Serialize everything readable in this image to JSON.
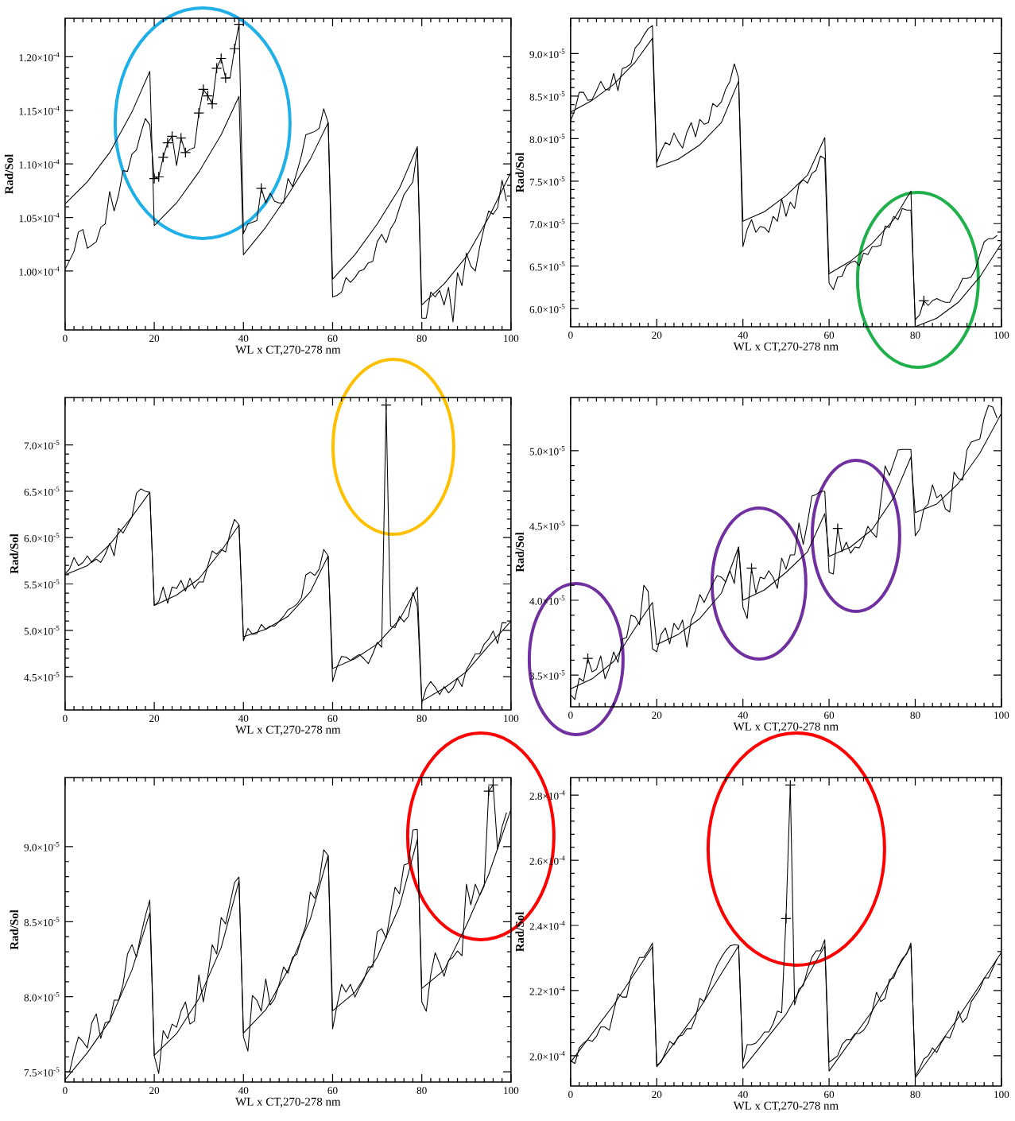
{
  "chart_data": [
    {
      "type": "line",
      "xlabel": "WL x CT,270-278 nm",
      "ylabel": "Rad/Sol",
      "xlim": [
        0,
        100
      ],
      "ylim": [
        9.45e-05,
        0.0001236
      ],
      "xticks": [
        0,
        20,
        40,
        60,
        80,
        100
      ],
      "yticks": [
        {
          "value": 0.0001,
          "label": "1.00×10$^{-4}$"
        },
        {
          "value": 0.000105,
          "label": "1.05×10$^{-4}$"
        },
        {
          "value": 0.00011,
          "label": "1.10×10$^{-4}$"
        },
        {
          "value": 0.000115,
          "label": "1.15×10$^{-4}$"
        },
        {
          "value": 0.00012,
          "label": "1.20×10$^{-4}$"
        }
      ],
      "series": [
        {
          "color": "#000000",
          "x": [
            0,
            2,
            3,
            4,
            5,
            7,
            8,
            9,
            10,
            11,
            12,
            13,
            14,
            15,
            16,
            17,
            18,
            19,
            20,
            21,
            22,
            23,
            24,
            25,
            26,
            27,
            28,
            29,
            30,
            31,
            32,
            33,
            34,
            35,
            36,
            37,
            38,
            39,
            40,
            41,
            42,
            43,
            44,
            45,
            46,
            47,
            48,
            49,
            50,
            51,
            52,
            53,
            54,
            55,
            56,
            57,
            58,
            59,
            60,
            61,
            62,
            63,
            64,
            65,
            66,
            67,
            68,
            69,
            70,
            71,
            72,
            73,
            74,
            75,
            76,
            77,
            78,
            79,
            80,
            81,
            82,
            83,
            84,
            85,
            86,
            87,
            88,
            89,
            90,
            91,
            92,
            93,
            94,
            95,
            96,
            97,
            98,
            99
          ],
          "values": [
            0.00010015,
            0.00010182,
            0.00010364,
            0.00010388,
            0.00010212,
            0.00010273,
            0.00010409,
            0.0001044,
            0.00010742,
            0.00010561,
            0.00010712,
            0.00010939,
            0.0001093,
            0.00011091,
            0.0001113,
            0.00011288,
            0.00011424,
            0.00011364,
            0.00010864,
            0.00010879,
            0.00011061,
            0.00011197,
            0.00011258,
            0.00010985,
            0.00011242,
            0.00011106,
            0.00011136,
            0.00011152,
            0.00011476,
            0.00011697,
            0.00011636,
            0.00011561,
            0.00011894,
            0.00011985,
            0.00011803,
            0.00011803,
            0.00012076,
            0.00012303,
            0.0001035,
            0.0001044,
            0.00010455,
            0.0001047,
            0.00010773,
            0.00010636,
            0.00010727,
            0.0001065,
            0.00010636,
            0.00010636,
            0.00010864,
            0.00010788,
            0.00010924,
            0.00011076,
            0.00011273,
            0.00011288,
            0.00011303,
            0.00011333,
            0.00011515,
            0.00011385,
            9.758e-05,
            9.773e-05,
            9.803e-05,
            9.939e-05,
            9.894e-05,
            9.939e-05,
            0.0001,
            0.00010015,
            0.00010076,
            0.00010091,
            0.00010273,
            0.00010342,
            0.00010264,
            0.00010394,
            0.00010461,
            0.00010591,
            0.00010712,
            0.00010773,
            0.00010833,
            0.00011136,
            9.56e-05,
            9.56e-05,
            9.803e-05,
            9.758e-05,
            9.818e-05,
            9.682e-05,
            9.848e-05,
            9.524e-05,
            9.985e-05,
            9.864e-05,
            0.00010167,
            0.00010045,
            0.0001,
            0.00010227,
            0.00010409,
            0.00010561,
            0.0001053,
            0.00010591,
            0.00010848,
            0.00010652
          ]
        },
        {
          "color": "#000000",
          "x": [
            0,
            5,
            10,
            15,
            19,
            20,
            25,
            30,
            35,
            39,
            40,
            45,
            50,
            55,
            59,
            60,
            65,
            70,
            75,
            79,
            80,
            85,
            90,
            95,
            100
          ],
          "values": [
            0.00010627,
            0.00010833,
            0.00011106,
            0.00011485,
            0.00011864,
            0.00010424,
            0.00010636,
            0.00010924,
            0.00011273,
            0.0001163,
            0.00010152,
            0.00010409,
            0.00010712,
            0.00011045,
            0.00011385,
            9.924e-05,
            0.00010152,
            0.00010439,
            0.00010773,
            0.00011161,
            9.682e-05,
            9.879e-05,
            0.00010136,
            0.000105,
            0.00010924
          ]
        },
        {
          "type": "scatter",
          "marker": "cross",
          "color": "#000000",
          "x": [
            20,
            21,
            22,
            23,
            24,
            26,
            27,
            30,
            31,
            32,
            33,
            34,
            35,
            36,
            38,
            39,
            44
          ],
          "values": [
            0.00010864,
            0.00010879,
            0.00011061,
            0.00011197,
            0.00011258,
            0.00011242,
            0.00011106,
            0.00011476,
            0.00011697,
            0.00011636,
            0.00011561,
            0.00011894,
            0.00011985,
            0.00011803,
            0.00012076,
            0.00012303,
            0.00010773
          ]
        }
      ]
    },
    {
      "type": "line",
      "xlabel": "WL x CT,270-278 nm",
      "ylabel": "Rad/Sol",
      "xlim": [
        0,
        100
      ],
      "ylim": [
        5.787e-05,
        9.415e-05
      ],
      "xticks": [
        0,
        20,
        40,
        60,
        80,
        100
      ],
      "yticks": [
        {
          "value": 6e-05,
          "label": "6.0×10$^{-5}$"
        },
        {
          "value": 6.5e-05,
          "label": "6.5×10$^{-5}$"
        },
        {
          "value": 7e-05,
          "label": "7.0×10$^{-5}$"
        },
        {
          "value": 7.5e-05,
          "label": "7.5×10$^{-5}$"
        },
        {
          "value": 8e-05,
          "label": "8.0×10$^{-5}$"
        },
        {
          "value": 8.5e-05,
          "label": "8.5×10$^{-5}$"
        },
        {
          "value": 9e-05,
          "label": "9.0×10$^{-5}$"
        }
      ],
      "series": [
        {
          "color": "#000000",
          "x": [
            0,
            1,
            2,
            3,
            4,
            5,
            6,
            7,
            8,
            9,
            10,
            11,
            12,
            13,
            14,
            15,
            16,
            17,
            18,
            19,
            20,
            21,
            22,
            23,
            24,
            25,
            26,
            27,
            28,
            29,
            30,
            31,
            32,
            33,
            34,
            35,
            36,
            37,
            38,
            39,
            40,
            41,
            42,
            43,
            44,
            45,
            46,
            47,
            48,
            49,
            50,
            51,
            52,
            53,
            54,
            55,
            56,
            57,
            58,
            59,
            60,
            61,
            62,
            63,
            64,
            65,
            66,
            67,
            68,
            69,
            70,
            71,
            72,
            73,
            74,
            75,
            76,
            77,
            78,
            79,
            80,
            81,
            82,
            83,
            84,
            85,
            86,
            87,
            88,
            89,
            90,
            91,
            92,
            93,
            94,
            95,
            96,
            97,
            98,
            99
          ],
          "values": [
            8.207e-05,
            8.338e-05,
            8.544e-05,
            8.544e-05,
            8.45e-05,
            8.46e-05,
            8.562e-05,
            8.675e-05,
            8.581e-05,
            8.57e-05,
            8.768e-05,
            8.562e-05,
            8.824e-05,
            8.843e-05,
            8.88e-05,
            9.067e-05,
            9.123e-05,
            9.217e-05,
            9.292e-05,
            9.329e-05,
            7.72e-05,
            7.851e-05,
            7.953e-05,
            7.926e-05,
            8.065e-05,
            7.964e-05,
            7.889e-05,
            8.076e-05,
            8.188e-05,
            8.02e-05,
            8.226e-05,
            8.169e-05,
            8.188e-05,
            8.413e-05,
            8.375e-05,
            8.431e-05,
            8.581e-05,
            8.675e-05,
            8.88e-05,
            8.712e-05,
            6.729e-05,
            6.934e-05,
            7.047e-05,
            6.897e-05,
            6.965e-05,
            6.954e-05,
            6.897e-05,
            7.085e-05,
            7.028e-05,
            7.29e-05,
            7.085e-05,
            7.253e-05,
            7.178e-05,
            7.459e-05,
            7.515e-05,
            7.477e-05,
            7.59e-05,
            7.627e-05,
            7.795e-05,
            7.765e-05,
            6.299e-05,
            6.224e-05,
            6.374e-05,
            6.381e-05,
            6.505e-05,
            6.542e-05,
            6.561e-05,
            6.505e-05,
            6.654e-05,
            6.636e-05,
            6.729e-05,
            6.729e-05,
            6.748e-05,
            6.972e-05,
            6.954e-05,
            7.085e-05,
            7.047e-05,
            7.178e-05,
            7.159e-05,
            7.159e-05,
            5.869e-05,
            5.925e-05,
            6.093e-05,
            6.037e-05,
            6.093e-05,
            6.119e-05,
            6.093e-05,
            6.074e-05,
            6.074e-05,
            6.168e-05,
            6.243e-05,
            6.355e-05,
            6.355e-05,
            6.374e-05,
            6.467e-05,
            6.636e-05,
            6.785e-05,
            6.823e-05,
            6.823e-05,
            6.86e-05
          ]
        },
        {
          "color": "#000000",
          "x": [
            0,
            5,
            10,
            15,
            19,
            20,
            25,
            30,
            35,
            39,
            40,
            45,
            50,
            55,
            59,
            60,
            65,
            70,
            75,
            79,
            80,
            85,
            90,
            95,
            100
          ],
          "values": [
            8.312e-05,
            8.45e-05,
            8.637e-05,
            8.9e-05,
            9.18e-05,
            7.664e-05,
            7.758e-05,
            7.926e-05,
            8.188e-05,
            8.675e-05,
            7.028e-05,
            7.14e-05,
            7.328e-05,
            7.571e-05,
            8.012e-05,
            6.411e-05,
            6.56e-05,
            6.767e-05,
            7.047e-05,
            7.384e-05,
            5.787e-05,
            5.887e-05,
            6.074e-05,
            6.374e-05,
            6.767e-05
          ]
        },
        {
          "type": "scatter",
          "marker": "cross",
          "color": "#000000",
          "x": [
            82
          ],
          "values": [
            6.093e-05
          ]
        }
      ]
    },
    {
      "type": "line",
      "xlabel": "WL x CT,270-278 nm",
      "ylabel": "Rad/Sol",
      "xlim": [
        0,
        100
      ],
      "ylim": [
        4.141e-05,
        7.511e-05
      ],
      "xticks": [
        0,
        20,
        40,
        60,
        80,
        100
      ],
      "yticks": [
        {
          "value": 4.5e-05,
          "label": "4.5×10$^{-5}$"
        },
        {
          "value": 5e-05,
          "label": "5.0×10$^{-5}$"
        },
        {
          "value": 5.5e-05,
          "label": "5.5×10$^{-5}$"
        },
        {
          "value": 6e-05,
          "label": "6.0×10$^{-5}$"
        },
        {
          "value": 6.5e-05,
          "label": "6.5×10$^{-5}$"
        },
        {
          "value": 7e-05,
          "label": "7.0×10$^{-5}$"
        }
      ],
      "series": [
        {
          "color": "#000000",
          "x": [
            0,
            1,
            2,
            3,
            4,
            5,
            6,
            7,
            8,
            9,
            10,
            11,
            12,
            13,
            14,
            15,
            16,
            17,
            18,
            19,
            20,
            21,
            22,
            23,
            24,
            25,
            26,
            27,
            28,
            29,
            30,
            31,
            32,
            33,
            34,
            35,
            36,
            37,
            38,
            39,
            40,
            41,
            42,
            43,
            44,
            45,
            46,
            47,
            48,
            49,
            50,
            51,
            52,
            53,
            54,
            55,
            56,
            57,
            58,
            59,
            60,
            61,
            62,
            63,
            64,
            65,
            66,
            67,
            68,
            69,
            70,
            71,
            72,
            73,
            74,
            75,
            76,
            77,
            78,
            79,
            80,
            81,
            82,
            83,
            84,
            85,
            86,
            87,
            88,
            89,
            90,
            91,
            92,
            93,
            94,
            95,
            96,
            97,
            98,
            99
          ],
          "values": [
            5.609e-05,
            5.662e-05,
            5.785e-05,
            5.697e-05,
            5.732e-05,
            5.803e-05,
            5.732e-05,
            5.768e-05,
            5.732e-05,
            5.82e-05,
            5.937e-05,
            5.803e-05,
            6.102e-05,
            6.049e-05,
            6.137e-05,
            6.225e-05,
            6.479e-05,
            6.525e-05,
            6.5e-05,
            6.489e-05,
            5.268e-05,
            5.31e-05,
            5.468e-05,
            5.292e-05,
            5.468e-05,
            5.451e-05,
            5.539e-05,
            5.423e-05,
            5.563e-05,
            5.451e-05,
            5.521e-05,
            5.521e-05,
            5.697e-05,
            5.856e-05,
            5.82e-05,
            5.873e-05,
            5.845e-05,
            6.049e-05,
            6.197e-05,
            6.137e-05,
            4.887e-05,
            5.021e-05,
            4.958e-05,
            4.965e-05,
            5.063e-05,
            5.011e-05,
            5.046e-05,
            5.046e-05,
            5.099e-05,
            5.151e-05,
            5.222e-05,
            5.246e-05,
            5.282e-05,
            5.352e-05,
            5.599e-05,
            5.627e-05,
            5.592e-05,
            5.662e-05,
            5.873e-05,
            5.803e-05,
            4.447e-05,
            4.606e-05,
            4.718e-05,
            4.711e-05,
            4.676e-05,
            4.711e-05,
            4.74e-05,
            4.694e-05,
            4.641e-05,
            4.746e-05,
            4.87e-05,
            4.817e-05,
            7.43e-05,
            5.046e-05,
            5.028e-05,
            5.151e-05,
            5.092e-05,
            5.151e-05,
            5.408e-05,
            5.257e-05,
            4.218e-05,
            4.377e-05,
            4.447e-05,
            4.387e-05,
            4.306e-05,
            4.394e-05,
            4.324e-05,
            4.377e-05,
            4.482e-05,
            4.394e-05,
            4.577e-05,
            4.658e-05,
            4.746e-05,
            4.746e-05,
            4.852e-05,
            4.905e-05,
            4.993e-05,
            4.859e-05,
            5.081e-05,
            5.081e-05
          ]
        },
        {
          "color": "#000000",
          "x": [
            0,
            5,
            10,
            15,
            19,
            20,
            25,
            30,
            35,
            39,
            40,
            45,
            50,
            55,
            59,
            60,
            65,
            70,
            75,
            79,
            80,
            85,
            90,
            95,
            100
          ],
          "values": [
            5.599e-05,
            5.697e-05,
            5.926e-05,
            6.225e-05,
            6.489e-05,
            5.268e-05,
            5.38e-05,
            5.556e-05,
            5.856e-05,
            6.137e-05,
            4.93e-05,
            5.011e-05,
            5.151e-05,
            5.415e-05,
            5.803e-05,
            4.588e-05,
            4.694e-05,
            4.852e-05,
            5.116e-05,
            5.468e-05,
            4.236e-05,
            4.377e-05,
            4.553e-05,
            4.835e-05,
            5.099e-05
          ]
        },
        {
          "type": "scatter",
          "marker": "cross",
          "color": "#000000",
          "x": [
            72
          ],
          "values": [
            7.43e-05
          ]
        }
      ]
    },
    {
      "type": "line",
      "xlabel": "WL x CT,270-278 nm",
      "ylabel": "Rad/Sol",
      "xlim": [
        0,
        100
      ],
      "ylim": [
        3.288e-05,
        5.355e-05
      ],
      "xticks": [
        0,
        20,
        40,
        60,
        80,
        100
      ],
      "yticks": [
        {
          "value": 3.5e-05,
          "label": "3.5×10$^{-5}$"
        },
        {
          "value": 4e-05,
          "label": "4.0×10$^{-5}$"
        },
        {
          "value": 4.5e-05,
          "label": "4.5×10$^{-5}$"
        },
        {
          "value": 5e-05,
          "label": "5.0×10$^{-5}$"
        }
      ],
      "series": [
        {
          "color": "#000000",
          "x": [
            0,
            1,
            2,
            3,
            4,
            5,
            6,
            7,
            8,
            9,
            10,
            11,
            12,
            13,
            14,
            15,
            16,
            17,
            18,
            19,
            20,
            21,
            22,
            23,
            24,
            25,
            26,
            27,
            28,
            29,
            30,
            31,
            32,
            33,
            34,
            35,
            36,
            37,
            38,
            39,
            40,
            41,
            42,
            43,
            44,
            45,
            46,
            47,
            48,
            49,
            50,
            51,
            52,
            53,
            54,
            55,
            56,
            57,
            58,
            59,
            60,
            61,
            62,
            63,
            64,
            65,
            66,
            67,
            68,
            69,
            70,
            71,
            72,
            73,
            74,
            75,
            76,
            77,
            78,
            79,
            80,
            81,
            82,
            83,
            84,
            85,
            86,
            87,
            88,
            89,
            90,
            91,
            92,
            93,
            94,
            95,
            96,
            97,
            98,
            99
          ],
          "values": [
            3.368e-05,
            3.337e-05,
            3.479e-05,
            3.458e-05,
            3.611e-05,
            3.521e-05,
            3.538e-05,
            3.628e-05,
            3.475e-05,
            3.549e-05,
            3.655e-05,
            3.585e-05,
            3.74e-05,
            3.751e-05,
            3.9e-05,
            3.889e-05,
            3.836e-05,
            4.101e-05,
            4.059e-05,
            3.676e-05,
            3.655e-05,
            3.772e-05,
            3.815e-05,
            3.708e-05,
            3.846e-05,
            3.804e-05,
            3.868e-05,
            3.687e-05,
            3.868e-05,
            3.931e-05,
            4.038e-05,
            3.985e-05,
            4.048e-05,
            4.112e-05,
            4.165e-05,
            4.154e-05,
            4.123e-05,
            4.197e-05,
            4.112e-05,
            4.356e-05,
            3.953e-05,
            3.878e-05,
            4.214e-05,
            4.048e-05,
            4.154e-05,
            4.144e-05,
            4.197e-05,
            4.154e-05,
            4.08e-05,
            4.282e-05,
            4.208e-05,
            4.303e-05,
            4.303e-05,
            4.516e-05,
            4.373e-05,
            4.52e-05,
            4.696e-05,
            4.707e-05,
            4.728e-05,
            4.728e-05,
            4.186e-05,
            4.176e-05,
            4.48e-05,
            4.324e-05,
            4.388e-05,
            4.314e-05,
            4.356e-05,
            4.35e-05,
            4.409e-05,
            4.494e-05,
            4.452e-05,
            4.42e-05,
            4.664e-05,
            4.898e-05,
            4.834e-05,
            4.919e-05,
            5.004e-05,
            5.008e-05,
            5.008e-05,
            5.008e-05,
            4.431e-05,
            4.473e-05,
            4.611e-05,
            4.643e-05,
            4.771e-05,
            4.685e-05,
            4.707e-05,
            4.611e-05,
            4.59e-05,
            4.856e-05,
            4.813e-05,
            4.802e-05,
            5.004e-05,
            5.057e-05,
            5.068e-05,
            5.079e-05,
            5.217e-05,
            5.302e-05,
            5.291e-05,
            5.217e-05
          ]
        },
        {
          "color": "#000000",
          "x": [
            0,
            5,
            10,
            15,
            19,
            20,
            25,
            30,
            35,
            39,
            40,
            45,
            50,
            55,
            59,
            60,
            65,
            70,
            75,
            79,
            80,
            85,
            90,
            95,
            100
          ],
          "values": [
            3.407e-05,
            3.475e-05,
            3.591e-05,
            3.815e-05,
            3.985e-05,
            3.704e-05,
            3.772e-05,
            3.878e-05,
            4.048e-05,
            4.356e-05,
            4e-05,
            4.069e-05,
            4.186e-05,
            4.324e-05,
            4.579e-05,
            4.293e-05,
            4.356e-05,
            4.473e-05,
            4.686e-05,
            4.958e-05,
            4.586e-05,
            4.643e-05,
            4.781e-05,
            4.983e-05,
            5.249e-05
          ]
        },
        {
          "type": "scatter",
          "marker": "cross",
          "color": "#000000",
          "x": [
            4,
            42,
            62
          ],
          "values": [
            3.611e-05,
            4.214e-05,
            4.48e-05
          ]
        }
      ]
    },
    {
      "type": "line",
      "xlabel": "WL x CT,270-278 nm",
      "ylabel": "Rad/Sol",
      "xlim": [
        0,
        100
      ],
      "ylim": [
        7.432e-05,
        9.46e-05
      ],
      "xticks": [
        0,
        20,
        40,
        60,
        80,
        100
      ],
      "yticks": [
        {
          "value": 7.5e-05,
          "label": "7.5×10$^{-5}$"
        },
        {
          "value": 8e-05,
          "label": "8.0×10$^{-5}$"
        },
        {
          "value": 8.5e-05,
          "label": "8.5×10$^{-5}$"
        },
        {
          "value": 9e-05,
          "label": "9.0×10$^{-5}$"
        }
      ],
      "series": [
        {
          "color": "#000000",
          "x": [
            0,
            1,
            2,
            3,
            4,
            5,
            6,
            7,
            8,
            9,
            10,
            11,
            12,
            13,
            14,
            15,
            16,
            17,
            18,
            19,
            20,
            21,
            22,
            23,
            24,
            25,
            26,
            27,
            28,
            29,
            30,
            31,
            32,
            33,
            34,
            35,
            36,
            37,
            38,
            39,
            40,
            41,
            42,
            43,
            44,
            45,
            46,
            47,
            48,
            49,
            50,
            51,
            52,
            53,
            54,
            55,
            56,
            57,
            58,
            59,
            60,
            61,
            62,
            63,
            64,
            65,
            66,
            67,
            68,
            69,
            70,
            71,
            72,
            73,
            74,
            75,
            76,
            77,
            78,
            79,
            80,
            81,
            82,
            83,
            84,
            85,
            86,
            87,
            88,
            89,
            90,
            91,
            92,
            93,
            94,
            95,
            96,
            97,
            98,
            99
          ],
          "values": [
            7.5e-05,
            7.5e-05,
            7.627e-05,
            7.733e-05,
            7.701e-05,
            7.659e-05,
            7.828e-05,
            7.886e-05,
            7.722e-05,
            7.828e-05,
            7.835e-05,
            7.977e-05,
            7.977e-05,
            8.083e-05,
            8.284e-05,
            8.347e-05,
            8.263e-05,
            8.411e-05,
            8.538e-05,
            8.644e-05,
            7.606e-05,
            7.489e-05,
            7.775e-05,
            7.722e-05,
            7.818e-05,
            7.797e-05,
            7.903e-05,
            7.966e-05,
            7.818e-05,
            7.839e-05,
            8.146e-05,
            7.966e-05,
            8.136e-05,
            8.347e-05,
            8.284e-05,
            8.528e-05,
            8.485e-05,
            8.623e-05,
            8.761e-05,
            8.797e-05,
            7.733e-05,
            7.638e-05,
            8.008e-05,
            7.977e-05,
            7.903e-05,
            8.119e-05,
            7.945e-05,
            7.987e-05,
            8.083e-05,
            8.199e-05,
            8.157e-05,
            8.263e-05,
            8.284e-05,
            8.39e-05,
            8.475e-05,
            8.697e-05,
            8.655e-05,
            8.771e-05,
            8.979e-05,
            8.941e-05,
            7.786e-05,
            7.945e-05,
            8.083e-05,
            8.03e-05,
            8.083e-05,
            7.998e-05,
            8.061e-05,
            8.114e-05,
            8.199e-05,
            8.199e-05,
            8.432e-05,
            8.453e-05,
            8.39e-05,
            8.559e-05,
            8.729e-05,
            8.686e-05,
            8.877e-05,
            8.888e-05,
            9.11e-05,
            9.114e-05,
            7.966e-05,
            7.903e-05,
            8.146e-05,
            8.294e-05,
            8.22e-05,
            8.136e-05,
            8.242e-05,
            8.263e-05,
            8.305e-05,
            8.273e-05,
            8.75e-05,
            8.612e-05,
            8.75e-05,
            8.676e-05,
            8.739e-05,
            9.369e-05,
            9.411e-05,
            8.983e-05,
            9.131e-05,
            9.227e-05
          ]
        },
        {
          "color": "#000000",
          "x": [
            0,
            5,
            10,
            15,
            19,
            20,
            25,
            30,
            35,
            39,
            40,
            45,
            50,
            55,
            59,
            60,
            65,
            70,
            75,
            79,
            80,
            85,
            90,
            95,
            100
          ],
          "values": [
            7.447e-05,
            7.627e-05,
            7.839e-05,
            8.178e-05,
            8.559e-05,
            7.61e-05,
            7.754e-05,
            7.987e-05,
            8.326e-05,
            8.771e-05,
            7.758e-05,
            7.913e-05,
            8.178e-05,
            8.517e-05,
            8.941e-05,
            7.907e-05,
            8.03e-05,
            8.263e-05,
            8.602e-05,
            9.047e-05,
            8.055e-05,
            8.178e-05,
            8.475e-05,
            8.814e-05,
            9.248e-05
          ]
        },
        {
          "type": "scatter",
          "marker": "cross",
          "color": "#000000",
          "x": [
            95,
            96
          ],
          "values": [
            9.369e-05,
            9.411e-05
          ]
        }
      ]
    },
    {
      "type": "line",
      "xlabel": "WL x CT,270-278 nm",
      "ylabel": "Rad/Sol",
      "xlim": [
        0,
        100
      ],
      "ylim": [
        0.0001907,
        0.0002854
      ],
      "xticks": [
        0,
        20,
        40,
        60,
        80,
        100
      ],
      "yticks": [
        {
          "value": 0.0002,
          "label": "2.0×10$^{-4}$"
        },
        {
          "value": 0.00022,
          "label": "2.2×10$^{-4}$"
        },
        {
          "value": 0.00024,
          "label": "2.4×10$^{-4}$"
        },
        {
          "value": 0.00026,
          "label": "2.6×10$^{-4}$"
        },
        {
          "value": 0.00028,
          "label": "2.8×10$^{-4}$"
        }
      ],
      "series": [
        {
          "color": "#000000",
          "x": [
            0,
            1,
            2,
            3,
            4,
            5,
            6,
            7,
            8,
            9,
            10,
            11,
            12,
            13,
            14,
            15,
            16,
            17,
            18,
            19,
            20,
            21,
            22,
            23,
            24,
            25,
            26,
            27,
            28,
            29,
            30,
            31,
            32,
            33,
            34,
            35,
            36,
            37,
            38,
            39,
            40,
            41,
            42,
            43,
            44,
            45,
            46,
            47,
            48,
            49,
            50,
            51,
            52,
            53,
            54,
            55,
            56,
            57,
            58,
            59,
            60,
            61,
            62,
            63,
            64,
            65,
            66,
            67,
            68,
            69,
            70,
            71,
            72,
            73,
            74,
            75,
            76,
            77,
            78,
            79,
            80,
            81,
            82,
            83,
            84,
            85,
            86,
            87,
            88,
            89,
            90,
            91,
            92,
            93,
            94,
            95,
            96,
            97,
            98,
            99
          ],
          "values": [
            0.0001985,
            0.0001976,
            0.0002024,
            0.0002039,
            0.0002049,
            0.0002044,
            0.0002059,
            0.0002088,
            0.0002088,
            0.0002078,
            0.0002137,
            0.000219,
            0.000218,
            0.000218,
            0.0002244,
            0.0002273,
            0.0002302,
            0.0002302,
            0.0002322,
            0.0002346,
            0.0001971,
            0.000198,
            0.000201,
            0.0002044,
            0.0002034,
            0.0002059,
            0.0002063,
            0.0002083,
            0.0002083,
            0.0002117,
            0.0002176,
            0.0002166,
            0.0002205,
            0.0002244,
            0.0002278,
            0.0002302,
            0.0002322,
            0.0002337,
            0.0002341,
            0.0002339,
            0.000198,
            0.0002034,
            0.0002034,
            0.0002039,
            0.0002054,
            0.0002073,
            0.0002073,
            0.0002098,
            0.0002137,
            0.0002132,
            0.0002421,
            0.0002831,
            0.0002156,
            0.0002205,
            0.0002215,
            0.0002263,
            0.0002302,
            0.0002322,
            0.0002322,
            0.0002356,
            0.000198,
            0.000199,
            0.0002,
            0.0002034,
            0.0002049,
            0.0002049,
            0.0002068,
            0.0002068,
            0.0002078,
            0.0002098,
            0.0002137,
            0.0002195,
            0.0002166,
            0.0002176,
            0.0002234,
            0.0002239,
            0.0002273,
            0.0002298,
            0.0002312,
            0.0002346,
            0.0001937,
            0.0001961,
            0.000199,
            0.0002,
            0.0002024,
            0.000201,
            0.0002039,
            0.0002059,
            0.0002054,
            0.0002088,
            0.0002137,
            0.0002102,
            0.0002117,
            0.0002166,
            0.0002185,
            0.0002205,
            0.0002239,
            0.0002239,
            0.0002268,
            0.0002298
          ]
        },
        {
          "color": "#000000",
          "x": [
            0,
            10,
            19,
            20,
            30,
            39,
            40,
            50,
            59,
            60,
            70,
            79,
            80,
            90,
            100
          ],
          "values": [
            0.000198,
            0.0002156,
            0.0002334,
            0.0001966,
            0.0002146,
            0.0002337,
            0.0001961,
            0.0002127,
            0.0002337,
            0.0001953,
            0.0002137,
            0.0002337,
            0.0001932,
            0.0002117,
            0.0002317
          ]
        },
        {
          "type": "scatter",
          "marker": "cross",
          "color": "#000000",
          "x": [
            50,
            51
          ],
          "values": [
            0.0002421,
            0.0002831
          ]
        }
      ]
    }
  ]
}
